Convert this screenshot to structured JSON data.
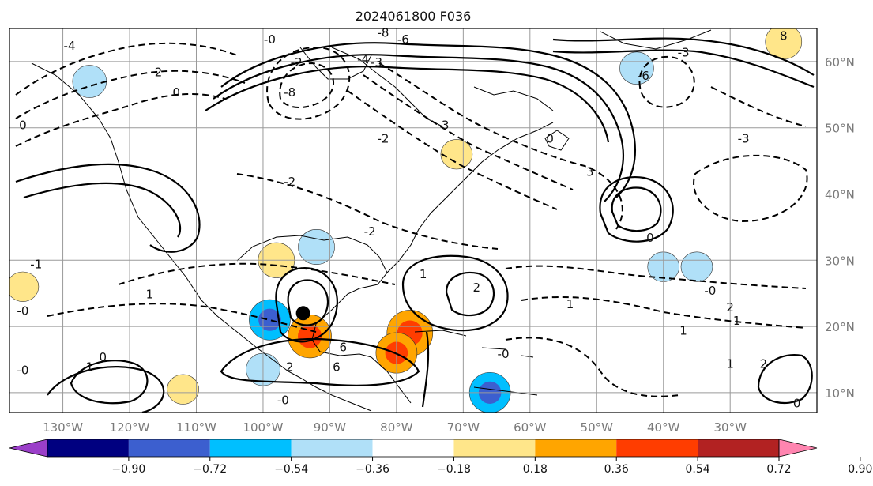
{
  "chart_data": {
    "type": "map",
    "title": "2024061800 F036",
    "projection": "cylindrical",
    "lon_range": [
      -138,
      -17
    ],
    "lat_range": [
      7,
      65
    ],
    "lon_ticks": [
      {
        "lon": -130,
        "label": "130°W"
      },
      {
        "lon": -120,
        "label": "120°W"
      },
      {
        "lon": -110,
        "label": "110°W"
      },
      {
        "lon": -100,
        "label": "100°W"
      },
      {
        "lon": -90,
        "label": "90°W"
      },
      {
        "lon": -80,
        "label": "80°W"
      },
      {
        "lon": -70,
        "label": "70°W"
      },
      {
        "lon": -60,
        "label": "60°W"
      },
      {
        "lon": -50,
        "label": "50°W"
      },
      {
        "lon": -40,
        "label": "40°W"
      },
      {
        "lon": -30,
        "label": "30°W"
      }
    ],
    "lat_ticks": [
      {
        "lat": 10,
        "label": "10°N"
      },
      {
        "lat": 20,
        "label": "20°N"
      },
      {
        "lat": 30,
        "label": "30°N"
      },
      {
        "lat": 40,
        "label": "40°N"
      },
      {
        "lat": 50,
        "label": "50°N"
      },
      {
        "lat": 60,
        "label": "60°N"
      }
    ],
    "grid": true,
    "colorbar": {
      "levels": [
        "−0.90",
        "−0.72",
        "−0.54",
        "−0.36",
        "−0.18",
        "0.18",
        "0.36",
        "0.54",
        "0.72",
        "0.90"
      ],
      "colors": [
        "#9b3fc9",
        "#000080",
        "#3c5fcf",
        "#00bfff",
        "#b0e0f8",
        "#ffffff",
        "#ffe68a",
        "#ffa500",
        "#ff3d00",
        "#b22222",
        "#ff85b0"
      ],
      "extend": "both"
    },
    "marker": {
      "lon": -94,
      "lat": 22,
      "label": ""
    },
    "filled_regions": [
      {
        "lon": -126,
        "lat": 57,
        "value": -0.25
      },
      {
        "lon": -98,
        "lat": 30,
        "value": 0.3
      },
      {
        "lon": -92,
        "lat": 32,
        "value": -0.3
      },
      {
        "lon": -99,
        "lat": 21,
        "value": -0.4
      },
      {
        "lon": -93,
        "lat": 18.5,
        "value": 0.45
      },
      {
        "lon": -100,
        "lat": 13.5,
        "value": -0.25
      },
      {
        "lon": -78,
        "lat": 19,
        "value": 0.5
      },
      {
        "lon": -80,
        "lat": 16,
        "value": 0.4
      },
      {
        "lon": -66,
        "lat": 10,
        "value": -0.4
      },
      {
        "lon": -44,
        "lat": 59,
        "value": -0.25
      },
      {
        "lon": -22,
        "lat": 63,
        "value": 0.3
      },
      {
        "lon": -71,
        "lat": 46,
        "value": 0.2
      },
      {
        "lon": -40,
        "lat": 29,
        "value": -0.2
      },
      {
        "lon": -35,
        "lat": 29,
        "value": -0.2
      },
      {
        "lon": -112,
        "lat": 10.5,
        "value": 0.2
      },
      {
        "lon": -136,
        "lat": 26,
        "value": 0.2
      }
    ],
    "contour_labels": [
      {
        "lon": -129,
        "lat": 62,
        "text": "-4"
      },
      {
        "lon": -116,
        "lat": 58,
        "text": "-2"
      },
      {
        "lon": -113,
        "lat": 55,
        "text": "0"
      },
      {
        "lon": -136,
        "lat": 50,
        "text": "0"
      },
      {
        "lon": -99,
        "lat": 63,
        "text": "-0"
      },
      {
        "lon": -95,
        "lat": 59.5,
        "text": "-2"
      },
      {
        "lon": -96,
        "lat": 55,
        "text": "-8"
      },
      {
        "lon": -82,
        "lat": 64,
        "text": "-8"
      },
      {
        "lon": -79,
        "lat": 63,
        "text": "-6"
      },
      {
        "lon": -85,
        "lat": 60,
        "text": "-4"
      },
      {
        "lon": -83,
        "lat": 59.5,
        "text": "-3"
      },
      {
        "lon": -73,
        "lat": 50,
        "text": "-3"
      },
      {
        "lon": -82,
        "lat": 48,
        "text": "-2"
      },
      {
        "lon": -96,
        "lat": 41.5,
        "text": "-2"
      },
      {
        "lon": -84,
        "lat": 34,
        "text": "-2"
      },
      {
        "lon": -51,
        "lat": 43,
        "text": "3"
      },
      {
        "lon": -57,
        "lat": 48,
        "text": "0"
      },
      {
        "lon": -43,
        "lat": 57.5,
        "text": "-6"
      },
      {
        "lon": -37,
        "lat": 61,
        "text": "-3"
      },
      {
        "lon": -22,
        "lat": 63.5,
        "text": "8"
      },
      {
        "lon": -28,
        "lat": 48,
        "text": "-3"
      },
      {
        "lon": -42,
        "lat": 33,
        "text": "0"
      },
      {
        "lon": -33,
        "lat": 25,
        "text": "-0"
      },
      {
        "lon": -30,
        "lat": 22.5,
        "text": "2"
      },
      {
        "lon": -29,
        "lat": 20.5,
        "text": "1"
      },
      {
        "lon": -54,
        "lat": 23,
        "text": "1"
      },
      {
        "lon": -37,
        "lat": 19,
        "text": "1"
      },
      {
        "lon": -64,
        "lat": 15.5,
        "text": "-0"
      },
      {
        "lon": -76,
        "lat": 27.5,
        "text": "1"
      },
      {
        "lon": -68,
        "lat": 25.5,
        "text": "2"
      },
      {
        "lon": -117,
        "lat": 24.5,
        "text": "1"
      },
      {
        "lon": -136,
        "lat": 22,
        "text": "-0"
      },
      {
        "lon": -134,
        "lat": 29,
        "text": "-1"
      },
      {
        "lon": -136,
        "lat": 13,
        "text": "-0"
      },
      {
        "lon": -126,
        "lat": 13.5,
        "text": "1"
      },
      {
        "lon": -124,
        "lat": 15,
        "text": "0"
      },
      {
        "lon": -96,
        "lat": 13.5,
        "text": "2"
      },
      {
        "lon": -89,
        "lat": 13.5,
        "text": "6"
      },
      {
        "lon": -88,
        "lat": 16.5,
        "text": "6"
      },
      {
        "lon": -97,
        "lat": 8.5,
        "text": "-0"
      },
      {
        "lon": -30,
        "lat": 14,
        "text": "1"
      },
      {
        "lon": -25,
        "lat": 14,
        "text": "2"
      },
      {
        "lon": -20,
        "lat": 8,
        "text": "0"
      }
    ]
  }
}
